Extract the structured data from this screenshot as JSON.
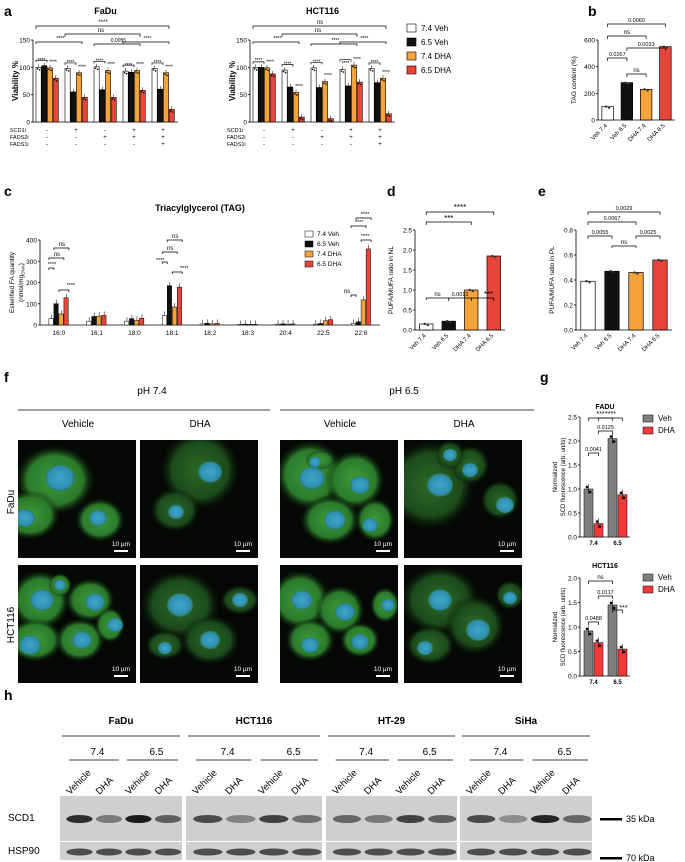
{
  "panel_letters": {
    "a": "a",
    "b": "b",
    "c": "c",
    "d": "d",
    "e": "e",
    "f": "f",
    "g": "g",
    "h": "h"
  },
  "colors": {
    "veh74": "#ffffff",
    "veh65": "#111111",
    "dha74": "#f5a43c",
    "dha65": "#e8443a",
    "gveh": "#7f7f7f",
    "gdha": "#f0393a",
    "cell_bg": "#050805"
  },
  "legend_a": [
    "7.4 Veh",
    "6.5 Veh",
    "7.4 DHA",
    "6.5 DHA"
  ],
  "sig": {
    "ns": "ns",
    "s3": "***",
    "s4": "****"
  },
  "chart_data": [
    {
      "type": "bar",
      "id": "a1",
      "title": "FaDu",
      "ylabel": "Viability %",
      "ylim": [
        0,
        150
      ],
      "yticks": [
        0,
        50,
        100,
        150
      ],
      "series": [
        "7.4 Veh",
        "6.5 Veh",
        "7.4 DHA",
        "6.5 DHA"
      ],
      "groups": [
        [
          100,
          103,
          99,
          80
        ],
        [
          98,
          55,
          90,
          45
        ],
        [
          101,
          59,
          94,
          45
        ],
        [
          93,
          91,
          94,
          58
        ],
        [
          98,
          60,
          90,
          23
        ]
      ],
      "treatment_rows": [
        {
          "label": "SCD1i",
          "cells": [
            "-",
            "+",
            "-",
            "+",
            "+"
          ]
        },
        {
          "label": "FADS2i",
          "cells": [
            "-",
            "-",
            "+",
            "+",
            "+"
          ]
        },
        {
          "label": "FADS1i",
          "cells": [
            "-",
            "-",
            "-",
            "-",
            "+"
          ]
        }
      ],
      "pvalues": [
        "0.0055"
      ]
    },
    {
      "type": "bar",
      "id": "a2",
      "title": "HCT116",
      "ylabel": "Viability %",
      "ylim": [
        0,
        150
      ],
      "yticks": [
        0,
        50,
        100,
        150
      ],
      "series": [
        "7.4 Veh",
        "6.5 Veh",
        "7.4 DHA",
        "6.5 DHA"
      ],
      "groups": [
        [
          100,
          100,
          99,
          88
        ],
        [
          95,
          64,
          54,
          9
        ],
        [
          99,
          63,
          74,
          6
        ],
        [
          96,
          66,
          104,
          73
        ],
        [
          98,
          72,
          80,
          15
        ]
      ],
      "treatment_rows": [
        {
          "label": "SCD1i",
          "cells": [
            "-",
            "+",
            "-",
            "+",
            "+"
          ]
        },
        {
          "label": "FADS2i",
          "cells": [
            "-",
            "-",
            "+",
            "+",
            "+"
          ]
        },
        {
          "label": "FADS1i",
          "cells": [
            "-",
            "-",
            "-",
            "-",
            "+"
          ]
        }
      ]
    },
    {
      "type": "bar",
      "id": "b",
      "ylabel": "TAG content (%)",
      "ylim": [
        0,
        600
      ],
      "yticks": [
        0,
        200,
        400,
        600
      ],
      "categories": [
        "Veh 7.4",
        "Veh 6.5",
        "DHA 7.4",
        "DHA 6.5"
      ],
      "values": [
        100,
        280,
        230,
        550
      ],
      "pvalues": [
        "0.0060",
        "0.0267",
        "0.0033"
      ],
      "ns": "ns"
    },
    {
      "type": "bar",
      "id": "c",
      "title": "Triacylglycerol (TAG)",
      "ylabel": "Esterified FA quantity",
      "ylabel2": "(nmol/mg",
      "ylabel_sub": "DNA",
      "ylabel_close": ")",
      "ylim": [
        0,
        400
      ],
      "yticks": [
        0,
        100,
        200,
        300,
        400
      ],
      "categories": [
        "16:0",
        "16:1",
        "18:0",
        "18:1",
        "18:2",
        "18:3",
        "20:4",
        "22:5",
        "22:6"
      ],
      "series": [
        {
          "name": "7.4 Veh",
          "values": [
            30,
            18,
            18,
            45,
            5,
            2,
            4,
            4,
            8
          ]
        },
        {
          "name": "6.5 Veh",
          "values": [
            100,
            40,
            30,
            185,
            8,
            4,
            5,
            7,
            15
          ]
        },
        {
          "name": "7.4 DHA",
          "values": [
            52,
            42,
            22,
            85,
            5,
            3,
            4,
            20,
            118
          ]
        },
        {
          "name": "6.5 DHA",
          "values": [
            128,
            45,
            32,
            178,
            7,
            3,
            5,
            25,
            358
          ]
        }
      ]
    },
    {
      "type": "bar",
      "id": "d",
      "ylabel": "PUFA/MUFA ratio in NL",
      "ylim": [
        0,
        2.5
      ],
      "yticks": [
        "0.0",
        "0.5",
        "1.0",
        "1.5",
        "2.0",
        "2.5"
      ],
      "categories": [
        "Veh 7.4",
        "Veh 6.5",
        "DHA 7.4",
        "DHA 6.5"
      ],
      "values": [
        0.15,
        0.22,
        1.0,
        1.85
      ],
      "pvalues": [
        "0.0012"
      ]
    },
    {
      "type": "bar",
      "id": "e",
      "ylabel": "PUFA/MUFA ratio in PL",
      "ylim": [
        0,
        0.8
      ],
      "yticks": [
        "0.0",
        "0.2",
        "0.4",
        "0.6",
        "0.8"
      ],
      "categories": [
        "Veh 7.4",
        "Veh 6.5",
        "DHA 7.4",
        "DHA 6.5"
      ],
      "values": [
        0.39,
        0.47,
        0.46,
        0.56
      ],
      "pvalues": [
        "0.0029",
        "0.0067",
        "0.0055",
        "0.0025"
      ]
    },
    {
      "type": "bar",
      "id": "g1",
      "title": "FADU",
      "ylabel": "Normalized",
      "ylabel2": "SCD fluorescence (arb. units)",
      "ylim": [
        0,
        2.5
      ],
      "yticks": [
        "0.0",
        "0.5",
        "1.0",
        "1.5",
        "2.0",
        "2.5"
      ],
      "categories": [
        "7.4",
        "6.5"
      ],
      "series": [
        {
          "name": "Veh",
          "values": [
            1.0,
            2.05
          ]
        },
        {
          "name": "DHA",
          "values": [
            0.28,
            0.88
          ]
        }
      ],
      "pvalues": [
        "0.0041",
        "0.0125"
      ]
    },
    {
      "type": "bar",
      "id": "g2",
      "title": "HCT116",
      "ylabel": "Normalized",
      "ylabel2": "SCD fluorescence (arb. units)",
      "ylim": [
        0,
        2.0
      ],
      "yticks": [
        "0.0",
        "0.5",
        "1.0",
        "1.5",
        "2.0"
      ],
      "categories": [
        "7.4",
        "6.5"
      ],
      "series": [
        {
          "name": "Veh",
          "values": [
            0.92,
            1.45
          ]
        },
        {
          "name": "DHA",
          "values": [
            0.68,
            0.55
          ]
        }
      ],
      "pvalues": [
        "0.0488",
        "0.0117"
      ]
    }
  ],
  "f": {
    "ph1": "pH 7.4",
    "ph2": "pH 6.5",
    "vehicle": "Vehicle",
    "dha": "DHA",
    "row1": "FaDu",
    "row2": "HCT116",
    "scale": "10 µm"
  },
  "h": {
    "lines": [
      "FaDu",
      "HCT116",
      "HT-29",
      "SiHa"
    ],
    "ph": [
      "7.4",
      "6.5"
    ],
    "lanes": [
      "Vehicle",
      "DHA",
      "Vehicle",
      "DHA"
    ],
    "row1": "SCD1",
    "row2": "HSP90",
    "kda1": "35 kDa",
    "kda2": "70 kDa"
  }
}
